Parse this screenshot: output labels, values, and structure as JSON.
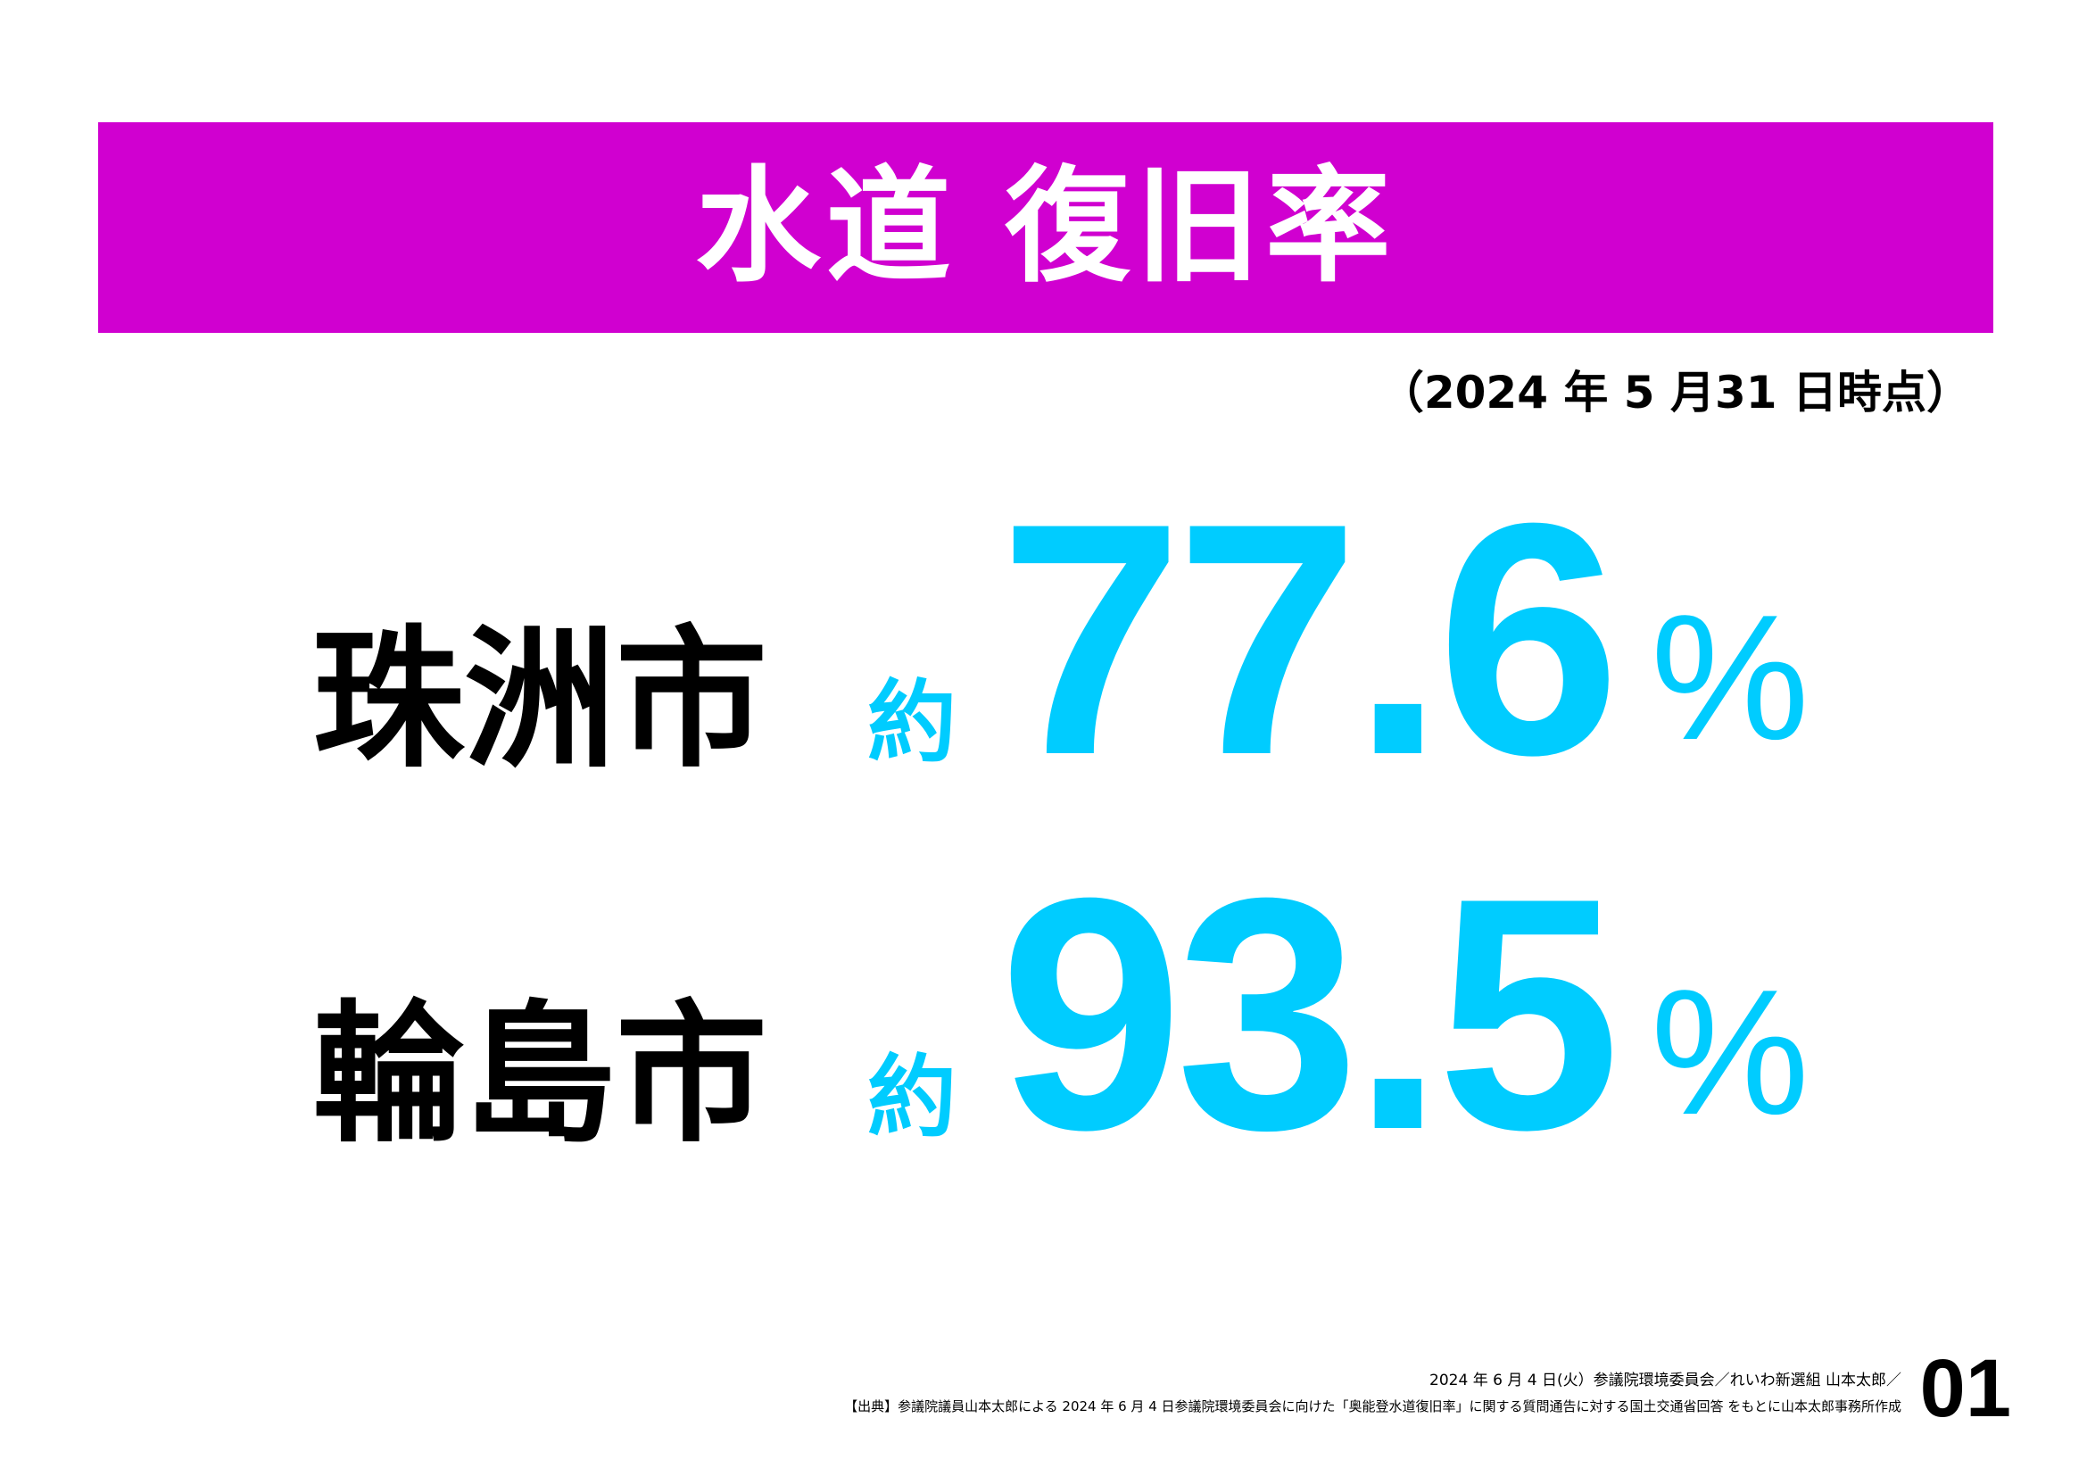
{
  "colors": {
    "banner": "#d000d0",
    "accent": "#00ccff",
    "text": "#000000",
    "title_text": "#ffffff"
  },
  "title": "水道 復旧率",
  "as_of": "（2024 年 5 月31 日時点）",
  "stats": [
    {
      "city": "珠洲市",
      "approx": "約",
      "value": "77.6",
      "unit": "%"
    },
    {
      "city": "輪島市",
      "approx": "約",
      "value": "93.5",
      "unit": "%"
    }
  ],
  "footer": {
    "line1": "2024 年 6 月 4 日(火）参議院環境委員会／れいわ新選組 山本太郎／",
    "line2": "【出典】参議院議員山本太郎による 2024 年 6 月 4 日参議院環境委員会に向けた「奥能登水道復旧率」に関する質問通告に対する国土交通省回答 をもとに山本太郎事務所作成",
    "page_number": "01"
  }
}
